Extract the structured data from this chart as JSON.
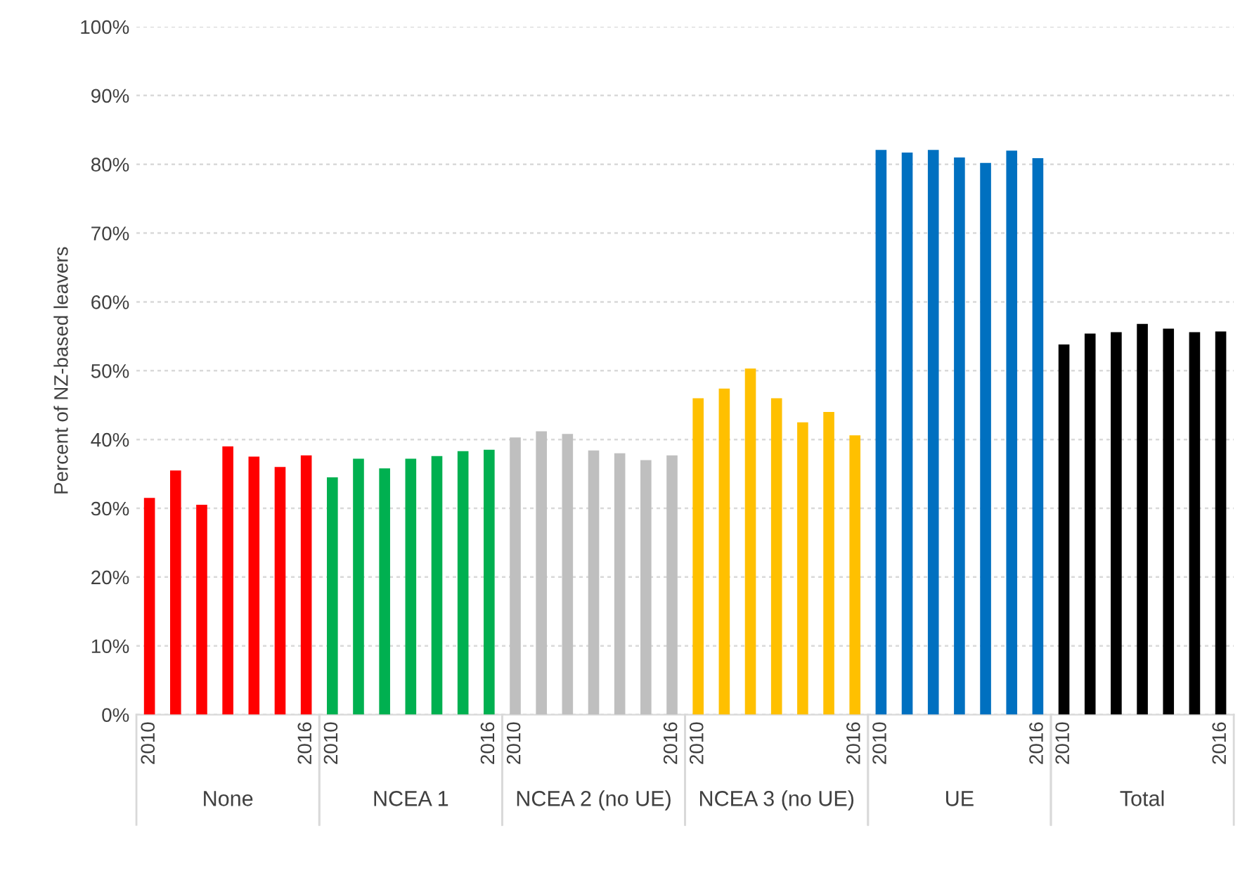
{
  "chart_data": {
    "type": "bar",
    "ylabel": "Percent of NZ-based leavers",
    "categories": [
      "2010",
      null,
      null,
      null,
      null,
      null,
      "2016",
      "2010",
      null,
      null,
      null,
      null,
      null,
      "2016",
      "2010",
      null,
      null,
      null,
      null,
      null,
      "2016",
      "2010",
      null,
      null,
      null,
      null,
      null,
      "2016",
      "2010",
      null,
      null,
      null,
      null,
      null,
      "2016",
      "2010",
      null,
      null,
      null,
      null,
      null,
      "2016"
    ],
    "values": [
      31.5,
      35.5,
      30.5,
      39,
      37.5,
      36,
      37.7,
      34.5,
      37.2,
      35.8,
      37.2,
      37.6,
      38.3,
      38.5,
      40.3,
      41.2,
      40.8,
      38.4,
      38,
      37,
      37.7,
      46,
      47.4,
      50.3,
      46,
      42.5,
      44,
      40.6,
      82.1,
      81.7,
      82.1,
      81,
      80.2,
      82,
      80.9,
      53.8,
      55.4,
      55.6,
      56.8,
      56.1,
      55.6,
      55.7
    ],
    "colors": [
      "#ff0000",
      "#ff0000",
      "#ff0000",
      "#ff0000",
      "#ff0000",
      "#ff0000",
      "#ff0000",
      "#00b050",
      "#00b050",
      "#00b050",
      "#00b050",
      "#00b050",
      "#00b050",
      "#00b050",
      "#bfbfbf",
      "#bfbfbf",
      "#bfbfbf",
      "#bfbfbf",
      "#bfbfbf",
      "#bfbfbf",
      "#bfbfbf",
      "#ffc000",
      "#ffc000",
      "#ffc000",
      "#ffc000",
      "#ffc000",
      "#ffc000",
      "#ffc000",
      "#0070c0",
      "#0070c0",
      "#0070c0",
      "#0070c0",
      "#0070c0",
      "#0070c0",
      "#0070c0",
      "#000000",
      "#000000",
      "#000000",
      "#000000",
      "#000000",
      "#000000",
      "#000000"
    ],
    "annotations": [
      "None",
      "NCEA 1",
      "NCEA 2 (no UE)",
      "NCEA 3 (no UE)",
      "UE",
      "Total"
    ],
    "ylim": [
      0,
      100
    ],
    "yticks": [
      {
        "value": 0,
        "label": "0%"
      },
      {
        "value": 10,
        "label": "10%"
      },
      {
        "value": 20,
        "label": "20%"
      },
      {
        "value": 30,
        "label": "30%"
      },
      {
        "value": 40,
        "label": "40%"
      },
      {
        "value": 50,
        "label": "50%"
      },
      {
        "value": 60,
        "label": "60%"
      },
      {
        "value": 70,
        "label": "70%"
      },
      {
        "value": 80,
        "label": "80%"
      },
      {
        "value": 90,
        "label": "90%"
      },
      {
        "value": 100,
        "label": "100%"
      }
    ],
    "grid": "y"
  }
}
